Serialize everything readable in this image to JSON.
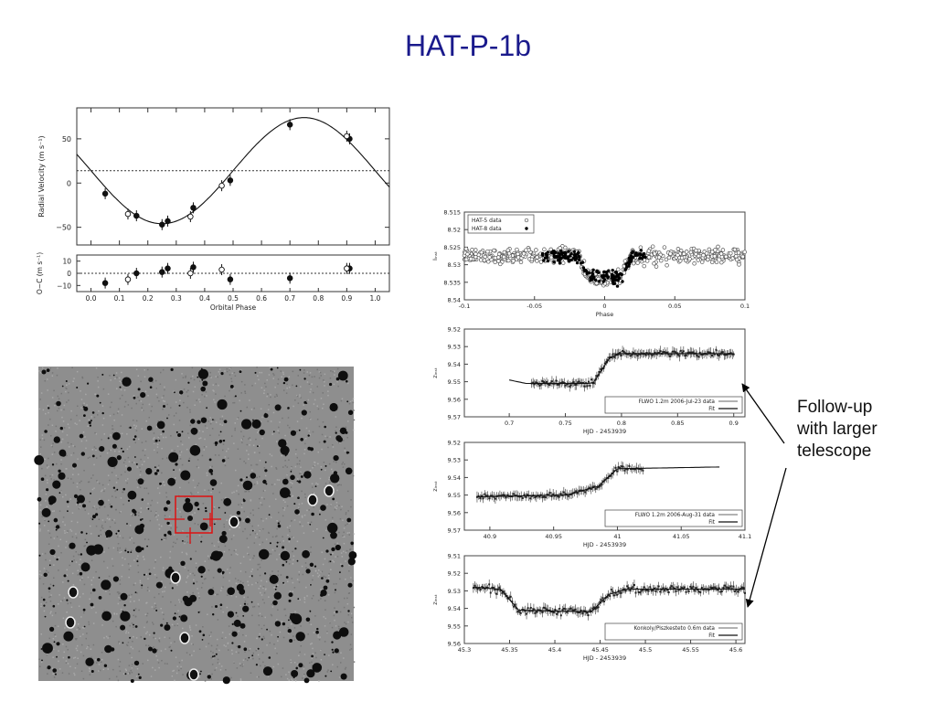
{
  "slide": {
    "title": "HAT-P-1b"
  },
  "callout": {
    "lines": [
      "Follow-up",
      "with larger",
      "telescope"
    ]
  },
  "chart_data": [
    {
      "type": "scatter",
      "ylabel": "Radial Velocity (m s⁻¹)",
      "xlabel": "",
      "xlim": [
        -0.05,
        1.05
      ],
      "ylim": [
        -70,
        85
      ],
      "yticks": [
        -50,
        0,
        50
      ],
      "ytick_labels": [
        "−50",
        "0",
        "50"
      ],
      "xticks": [
        0.0,
        0.1,
        0.2,
        0.3,
        0.4,
        0.5,
        0.6,
        0.7,
        0.8,
        0.9,
        1.0
      ],
      "reference_line": 14,
      "model_curve": {
        "gamma": 14,
        "K": 60,
        "phase_max": 0.75
      },
      "series": [
        {
          "marker": "filled",
          "x": [
            0.05,
            0.16,
            0.25,
            0.27,
            0.36,
            0.49,
            0.7,
            0.91
          ],
          "y": [
            -12,
            -37,
            -47,
            -43,
            -28,
            3,
            66,
            50
          ]
        },
        {
          "marker": "open",
          "x": [
            0.13,
            0.35,
            0.46,
            0.9
          ],
          "y": [
            -35,
            -38,
            -3,
            53
          ]
        }
      ]
    },
    {
      "type": "scatter",
      "ylabel": "O−C (m s⁻¹)",
      "xlabel": "Orbital Phase",
      "xlim": [
        -0.05,
        1.05
      ],
      "ylim": [
        -15,
        15
      ],
      "yticks": [
        -10,
        0,
        10
      ],
      "ytick_labels": [
        "−10",
        "0",
        "10"
      ],
      "xticks": [
        0.0,
        0.1,
        0.2,
        0.3,
        0.4,
        0.5,
        0.6,
        0.7,
        0.8,
        0.9,
        1.0
      ],
      "xtick_labels": [
        "0.0",
        "0.1",
        "0.2",
        "0.3",
        "0.4",
        "0.5",
        "0.6",
        "0.7",
        "0.8",
        "0.9",
        "1.0"
      ],
      "series": [
        {
          "marker": "filled",
          "x": [
            0.05,
            0.16,
            0.25,
            0.27,
            0.36,
            0.49,
            0.7,
            0.91
          ],
          "y": [
            -8,
            0,
            1,
            4,
            5,
            -5,
            -4,
            4
          ]
        },
        {
          "marker": "open",
          "x": [
            0.13,
            0.35,
            0.46,
            0.9
          ],
          "y": [
            -5,
            0,
            3,
            4
          ]
        }
      ]
    },
    {
      "type": "scatter",
      "ylabel": "Iᵢₙₛₜ",
      "xlabel": "Phase",
      "xlim": [
        -0.1,
        0.1
      ],
      "ylim": [
        8.515,
        8.54
      ],
      "y_inverted": true,
      "yticks": [
        8.515,
        8.52,
        8.525,
        8.53,
        8.535,
        8.54
      ],
      "ytick_labels": [
        "8.515",
        "8.52",
        "8.525",
        "8.53",
        "8.535",
        "8.54"
      ],
      "xticks": [
        -0.1,
        -0.05,
        0,
        0.05,
        0.1
      ],
      "xtick_labels": [
        "-0.1",
        "-0.05",
        "0",
        "0.05",
        "0.1"
      ],
      "legend": {
        "position": "top-left",
        "entries": [
          "HAT-5 data",
          "HAT-8 data"
        ]
      },
      "transit": {
        "center": 0.0,
        "half_width": 0.012,
        "depth": 0.006,
        "baseline": 8.5275
      }
    },
    {
      "type": "line",
      "ylabel": "zᵢₙₛₜ",
      "xlabel": "HJD - 2453939",
      "xlim": [
        0.66,
        0.91
      ],
      "ylim": [
        9.52,
        9.57
      ],
      "y_inverted": true,
      "yticks": [
        9.52,
        9.53,
        9.54,
        9.55,
        9.56,
        9.57
      ],
      "ytick_labels": [
        "9.52",
        "9.53",
        "9.54",
        "9.55",
        "9.56",
        "9.57"
      ],
      "xticks": [
        0.7,
        0.75,
        0.8,
        0.85,
        0.9
      ],
      "xtick_labels": [
        "0.7",
        "0.75",
        "0.8",
        "0.85",
        "0.9"
      ],
      "legend": {
        "position": "bottom-right",
        "entries": [
          "FLWO 1.2m 2006-Jul-23 data",
          "Fit"
        ]
      },
      "fit": {
        "x": [
          0.7,
          0.715,
          0.73,
          0.77,
          0.775,
          0.79,
          0.8,
          0.9
        ],
        "y": [
          9.549,
          9.551,
          9.551,
          9.551,
          9.5505,
          9.536,
          9.534,
          9.534
        ]
      },
      "data_range": [
        0.72,
        0.9
      ]
    },
    {
      "type": "line",
      "ylabel": "zᵢₙₛₜ",
      "xlabel": "HJD - 2453939",
      "xlim": [
        40.88,
        41.1
      ],
      "ylim": [
        9.52,
        9.57
      ],
      "y_inverted": true,
      "yticks": [
        9.52,
        9.53,
        9.54,
        9.55,
        9.56,
        9.57
      ],
      "ytick_labels": [
        "9.52",
        "9.53",
        "9.54",
        "9.55",
        "9.56",
        "9.57"
      ],
      "xticks": [
        40.9,
        40.95,
        41,
        41.05,
        41.1
      ],
      "xtick_labels": [
        "40.9",
        "40.95",
        "41",
        "41.05",
        "41.1"
      ],
      "legend": {
        "position": "bottom-right",
        "entries": [
          "FLWO 1.2m 2006-Aug-31 data",
          "Fit"
        ]
      },
      "fit": {
        "x": [
          40.89,
          40.96,
          40.985,
          41.0,
          41.08
        ],
        "y": [
          9.551,
          9.55,
          9.545,
          9.535,
          9.534
        ]
      },
      "data_range": [
        40.89,
        41.02
      ]
    },
    {
      "type": "line",
      "ylabel": "zᵢₙₛₜ",
      "xlabel": "HJD - 2453939",
      "xlim": [
        45.3,
        45.61
      ],
      "ylim": [
        9.51,
        9.56
      ],
      "y_inverted": true,
      "yticks": [
        9.51,
        9.52,
        9.53,
        9.54,
        9.55,
        9.56
      ],
      "ytick_labels": [
        "9.51",
        "9.52",
        "9.53",
        "9.54",
        "9.55",
        "9.56"
      ],
      "xticks": [
        45.3,
        45.35,
        45.4,
        45.45,
        45.5,
        45.55,
        45.6
      ],
      "xtick_labels": [
        "45.3",
        "45.35",
        "45.4",
        "45.45",
        "45.5",
        "45.55",
        "45.6"
      ],
      "legend": {
        "position": "bottom-right",
        "entries": [
          "Konkoly/Piszkesteto 0.6m data",
          "Fit"
        ]
      },
      "fit": {
        "x": [
          45.31,
          45.34,
          45.36,
          45.44,
          45.46,
          45.48,
          45.61
        ],
        "y": [
          9.528,
          9.529,
          9.541,
          9.542,
          9.532,
          9.529,
          9.529
        ]
      },
      "data_range": [
        45.31,
        45.61
      ]
    }
  ]
}
